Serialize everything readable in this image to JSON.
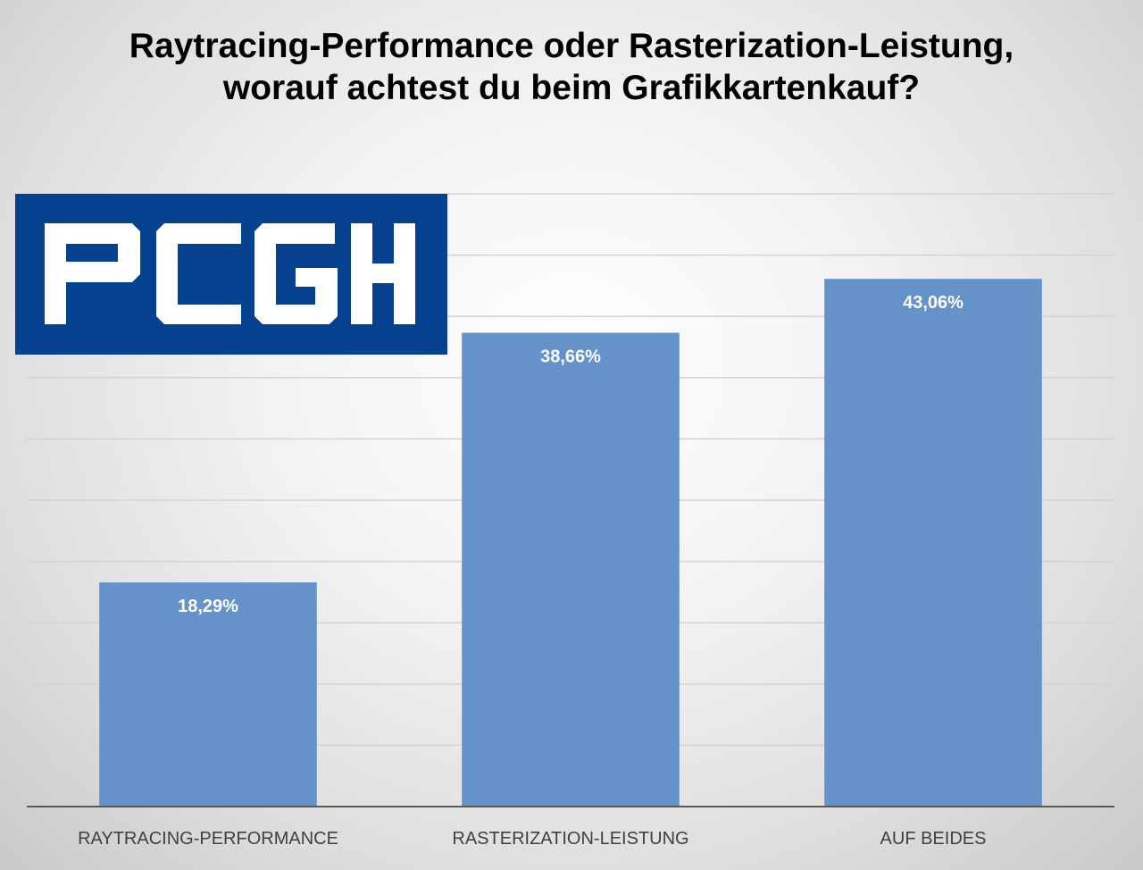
{
  "chart_data": {
    "type": "bar",
    "title": "Raytracing-Performance oder Rasterization-Leistung, worauf achtest du beim Grafikkartenkauf?",
    "categories": [
      "RAYTRACING-PERFORMANCE",
      "RASTERIZATION-LEISTUNG",
      "AUF BEIDES"
    ],
    "values": [
      18.29,
      38.66,
      43.06
    ],
    "value_labels": [
      "18,29%",
      "38,66%",
      "43,06%"
    ],
    "ylim": [
      0,
      50
    ],
    "grid": true,
    "legend": "none",
    "colors": {
      "bar": "#6592c8",
      "gridline": "#d3d3d3",
      "axis": "#595959",
      "data_label": "#ffffff"
    }
  },
  "logo": {
    "text": "PCGH",
    "background": "#05418e",
    "foreground": "#ffffff"
  }
}
